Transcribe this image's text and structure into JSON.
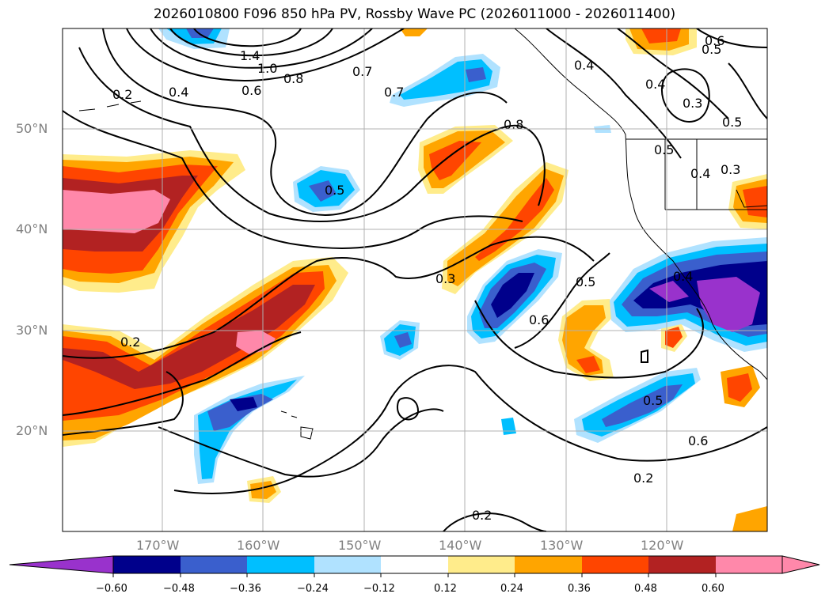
{
  "title": "2026010800 F096 850 hPa PV, Rossby Wave PC (2026011000 - 2026011400)",
  "map": {
    "lat_labels": [
      "50°N",
      "40°N",
      "30°N",
      "20°N"
    ],
    "lon_labels": [
      "170°W",
      "160°W",
      "150°W",
      "140°W",
      "130°W",
      "120°W"
    ],
    "contour_labels": [
      "1.4",
      "1.0",
      "0.8",
      "0.6",
      "0.4",
      "0.2",
      "0.7",
      "0.7",
      "0.8",
      "0.4",
      "0.6",
      "0.5",
      "0.4",
      "0.3",
      "0.5",
      "0.5",
      "0.4",
      "0.3",
      "0.5",
      "0.3",
      "0.5",
      "0.6",
      "0.4",
      "0.2",
      "0.5",
      "0.6",
      "0.2",
      "0.2"
    ]
  },
  "colorbar": {
    "ticks": [
      "−0.60",
      "−0.48",
      "−0.36",
      "−0.24",
      "−0.12",
      "0.12",
      "0.24",
      "0.36",
      "0.48",
      "0.60"
    ],
    "colors": [
      "#9932cc",
      "#00008b",
      "#3a5fcd",
      "#00bfff",
      "#b0e2ff",
      "#ffffff",
      "#ffec8b",
      "#ffa500",
      "#ff4500",
      "#b22222",
      "#ff88aa",
      "#ff88aa"
    ]
  }
}
